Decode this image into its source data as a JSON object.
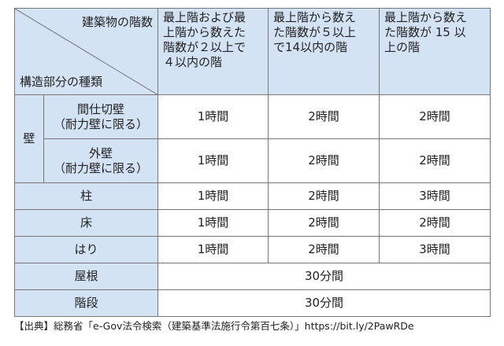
{
  "table": {
    "corner": {
      "top": "建築物の階数",
      "bottom": "構造部分の種類"
    },
    "columns": [
      [
        "最上階および最",
        "上階から数えた",
        "階数が２以上で",
        "４以内の階"
      ],
      [
        "最上階から数え",
        "た階数が５以上",
        "で14以内の階"
      ],
      [
        "最上階から数え",
        "た階数が 15 以",
        "上の階"
      ]
    ],
    "wall": {
      "label": "壁",
      "rows": [
        {
          "label": [
            "間仕切壁",
            "（耐力壁に限る）"
          ],
          "cells": [
            "1時間",
            "2時間",
            "2時間"
          ]
        },
        {
          "label": [
            "外壁",
            "（耐力壁に限る）"
          ],
          "cells": [
            "1時間",
            "2時間",
            "2時間"
          ]
        }
      ]
    },
    "rows": [
      {
        "label": "柱",
        "cells": [
          "1時間",
          "2時間",
          "3時間"
        ]
      },
      {
        "label": "床",
        "cells": [
          "1時間",
          "2時間",
          "2時間"
        ]
      },
      {
        "label": "はり",
        "cells": [
          "1時間",
          "2時間",
          "3時間"
        ]
      },
      {
        "label": "屋根",
        "cells": [
          "30分間"
        ]
      },
      {
        "label": "階段",
        "cells": [
          "30分間"
        ]
      }
    ]
  },
  "source": "【出典】総務省「e-Gov法令検索（建築基準法施行令第百七条）」https://bit.ly/2PawRDe"
}
